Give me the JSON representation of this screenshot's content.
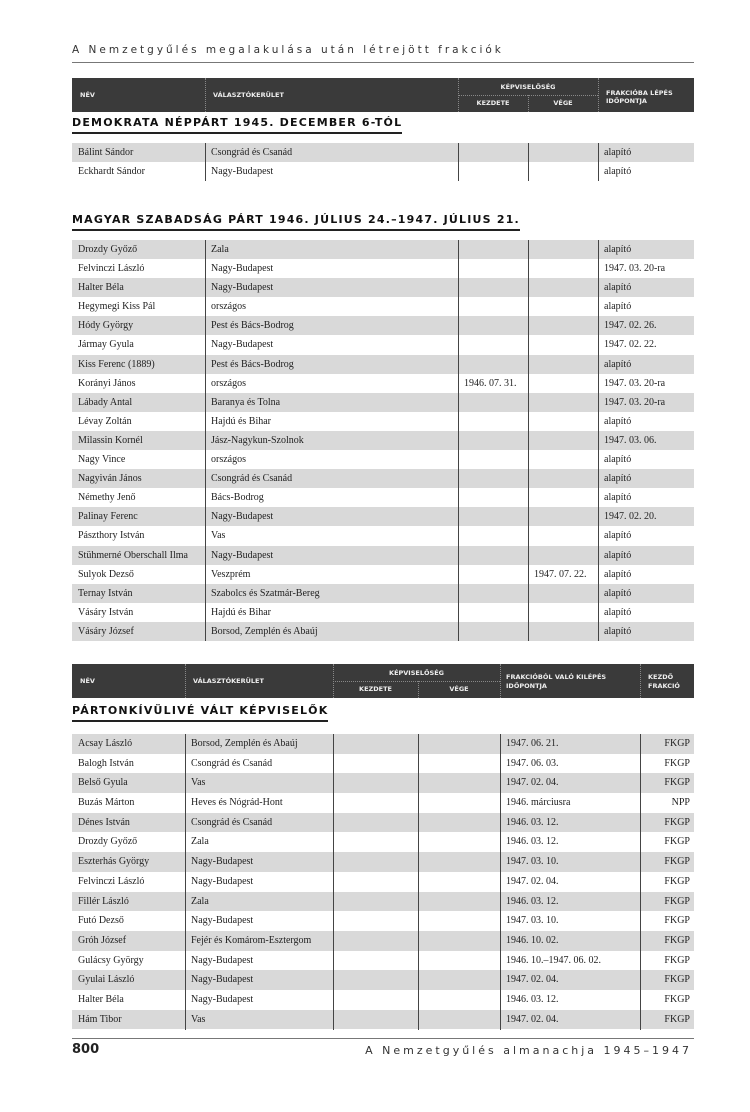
{
  "running_header": "A Nemzetgyűlés megalakulása után létrejött frakciók",
  "table1_header": {
    "name": "Név",
    "district": "Választókerület",
    "representation": "Képviselőség",
    "start": "kezdete",
    "end": "vége",
    "joined": "Frakcióba lépés időpontja"
  },
  "section1": {
    "title": "Demokrata Néppárt 1945. december 6-tól",
    "rows": [
      [
        "Bálint Sándor",
        "Csongrád és Csanád",
        "",
        "",
        "alapító"
      ],
      [
        "Eckhardt Sándor",
        "Nagy-Budapest",
        "",
        "",
        "alapító"
      ]
    ]
  },
  "section2": {
    "title": "Magyar Szabadság Párt 1946. július 24.–1947. július 21.",
    "rows": [
      [
        "Drozdy Győző",
        "Zala",
        "",
        "",
        "alapító"
      ],
      [
        "Felvinczi László",
        "Nagy-Budapest",
        "",
        "",
        "1947. 03. 20-ra"
      ],
      [
        "Halter Béla",
        "Nagy-Budapest",
        "",
        "",
        "alapító"
      ],
      [
        "Hegymegi Kiss Pál",
        "országos",
        "",
        "",
        "alapító"
      ],
      [
        "Hódy György",
        "Pest és Bács-Bodrog",
        "",
        "",
        "1947. 02. 26."
      ],
      [
        "Jármay Gyula",
        "Nagy-Budapest",
        "",
        "",
        "1947. 02. 22."
      ],
      [
        "Kiss Ferenc (1889)",
        "Pest és Bács-Bodrog",
        "",
        "",
        "alapító"
      ],
      [
        "Korányi János",
        "országos",
        "1946. 07. 31.",
        "",
        "1947. 03. 20-ra"
      ],
      [
        "Lábady Antal",
        "Baranya és Tolna",
        "",
        "",
        "1947. 03. 20-ra"
      ],
      [
        "Lévay Zoltán",
        "Hajdú és Bihar",
        "",
        "",
        "alapító"
      ],
      [
        "Milassin Kornél",
        "Jász-Nagykun-Szolnok",
        "",
        "",
        "1947. 03. 06."
      ],
      [
        "Nagy Vince",
        "országos",
        "",
        "",
        "alapító"
      ],
      [
        "Nagyiván János",
        "Csongrád és Csanád",
        "",
        "",
        "alapító"
      ],
      [
        "Némethy Jenő",
        "Bács-Bodrog",
        "",
        "",
        "alapító"
      ],
      [
        "Palinay Ferenc",
        "Nagy-Budapest",
        "",
        "",
        "1947. 02. 20."
      ],
      [
        "Pászthory István",
        "Vas",
        "",
        "",
        "alapító"
      ],
      [
        "Stühmerné Oberschall Ilma",
        "Nagy-Budapest",
        "",
        "",
        "alapító"
      ],
      [
        "Sulyok Dezső",
        "Veszprém",
        "",
        "1947. 07. 22.",
        "alapító"
      ],
      [
        "Ternay István",
        "Szabolcs és Szatmár-Bereg",
        "",
        "",
        "alapító"
      ],
      [
        "Vásáry István",
        "Hajdú és Bihar",
        "",
        "",
        "alapító"
      ],
      [
        "Vásáry József",
        "Borsod, Zemplén és Abaúj",
        "",
        "",
        "alapító"
      ]
    ]
  },
  "table2_header": {
    "name": "Név",
    "district": "Választókerület",
    "representation": "Képviselőség",
    "start": "kezdete",
    "end": "vége",
    "left": "Frakcióból való kilépés időpontja",
    "initial": "Kezdő frakció"
  },
  "section3": {
    "title": "Pártonkívülivé vált képviselők",
    "rows": [
      [
        "Acsay László",
        "Borsod, Zemplén és Abaúj",
        "",
        "",
        "1947. 06. 21.",
        "FKGP"
      ],
      [
        "Balogh István",
        "Csongrád és Csanád",
        "",
        "",
        "1947. 06. 03.",
        "FKGP"
      ],
      [
        "Belső Gyula",
        "Vas",
        "",
        "",
        "1947. 02. 04.",
        "FKGP"
      ],
      [
        "Buzás Márton",
        "Heves és Nógrád-Hont",
        "",
        "",
        "1946. márciusra",
        "NPP"
      ],
      [
        "Dénes István",
        "Csongrád és Csanád",
        "",
        "",
        "1946. 03. 12.",
        "FKGP"
      ],
      [
        "Drozdy Győző",
        "Zala",
        "",
        "",
        "1946. 03. 12.",
        "FKGP"
      ],
      [
        "Eszterhás György",
        "Nagy-Budapest",
        "",
        "",
        "1947. 03. 10.",
        "FKGP"
      ],
      [
        "Felvinczi László",
        "Nagy-Budapest",
        "",
        "",
        "1947. 02. 04.",
        "FKGP"
      ],
      [
        "Fillér László",
        "Zala",
        "",
        "",
        "1946. 03. 12.",
        "FKGP"
      ],
      [
        "Futó Dezső",
        "Nagy-Budapest",
        "",
        "",
        "1947. 03. 10.",
        "FKGP"
      ],
      [
        "Gróh József",
        "Fejér és Komárom-Esztergom",
        "",
        "",
        "1946. 10. 02.",
        "FKGP"
      ],
      [
        "Gulácsy György",
        "Nagy-Budapest",
        "",
        "",
        "1946. 10.–1947. 06. 02.",
        "FKGP"
      ],
      [
        "Gyulai László",
        "Nagy-Budapest",
        "",
        "",
        "1947. 02. 04.",
        "FKGP"
      ],
      [
        "Halter Béla",
        "Nagy-Budapest",
        "",
        "",
        "1946. 03. 12.",
        "FKGP"
      ],
      [
        "Hám Tibor",
        "Vas",
        "",
        "",
        "1947. 02. 04.",
        "FKGP"
      ]
    ]
  },
  "footer": {
    "page_number": "800",
    "title": "A Nemzetgyűlés almanachja 1945–1947"
  }
}
